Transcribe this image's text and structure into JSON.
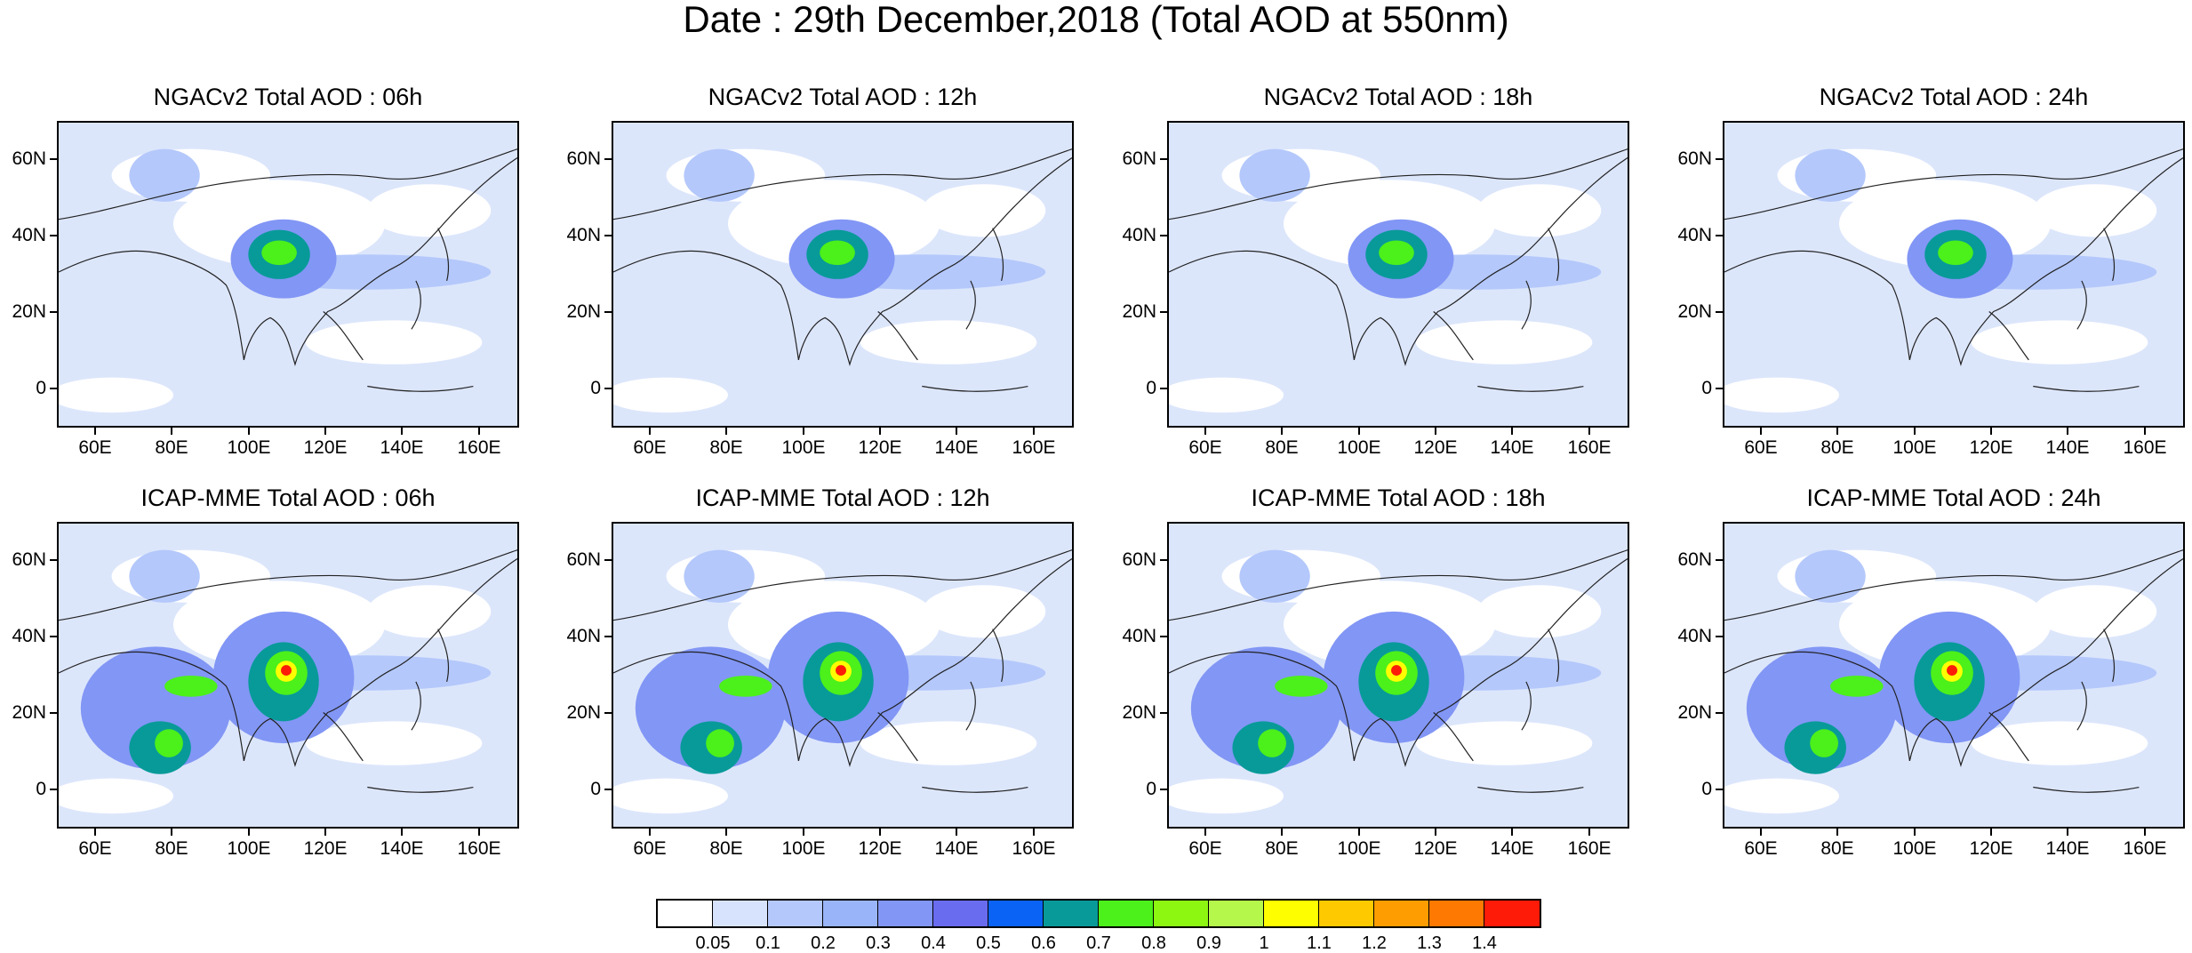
{
  "title": "Date : 29th December,2018 (Total AOD at 550nm)",
  "panels": [
    {
      "title": "NGACv2 Total AOD : 06h",
      "model": "NGACv2"
    },
    {
      "title": "NGACv2 Total AOD : 12h",
      "model": "NGACv2"
    },
    {
      "title": "NGACv2 Total AOD : 18h",
      "model": "NGACv2"
    },
    {
      "title": "NGACv2 Total AOD : 24h",
      "model": "NGACv2"
    },
    {
      "title": "ICAP-MME Total AOD : 06h",
      "model": "ICAP-MME"
    },
    {
      "title": "ICAP-MME Total AOD : 12h",
      "model": "ICAP-MME"
    },
    {
      "title": "ICAP-MME Total AOD : 18h",
      "model": "ICAP-MME"
    },
    {
      "title": "ICAP-MME Total AOD : 24h",
      "model": "ICAP-MME"
    }
  ],
  "axes": {
    "lat_labels": [
      "60N",
      "40N",
      "20N",
      "0"
    ],
    "lon_labels": [
      "60E",
      "80E",
      "100E",
      "120E",
      "140E",
      "160E"
    ]
  },
  "colorbar": {
    "colors": [
      "#ffffff",
      "#d7e3fd",
      "#b4c8fb",
      "#99b4f8",
      "#8296f5",
      "#6a6cf0",
      "#0b63f6",
      "#089a99",
      "#4cf01a",
      "#8ef712",
      "#b5f74a",
      "#fefe01",
      "#ffc900",
      "#fe9d01",
      "#fd7902",
      "#fe1b08"
    ],
    "labels": [
      "0.05",
      "0.1",
      "0.2",
      "0.3",
      "0.4",
      "0.5",
      "0.6",
      "0.7",
      "0.8",
      "0.9",
      "1",
      "1.1",
      "1.2",
      "1.3",
      "1.4"
    ]
  }
}
